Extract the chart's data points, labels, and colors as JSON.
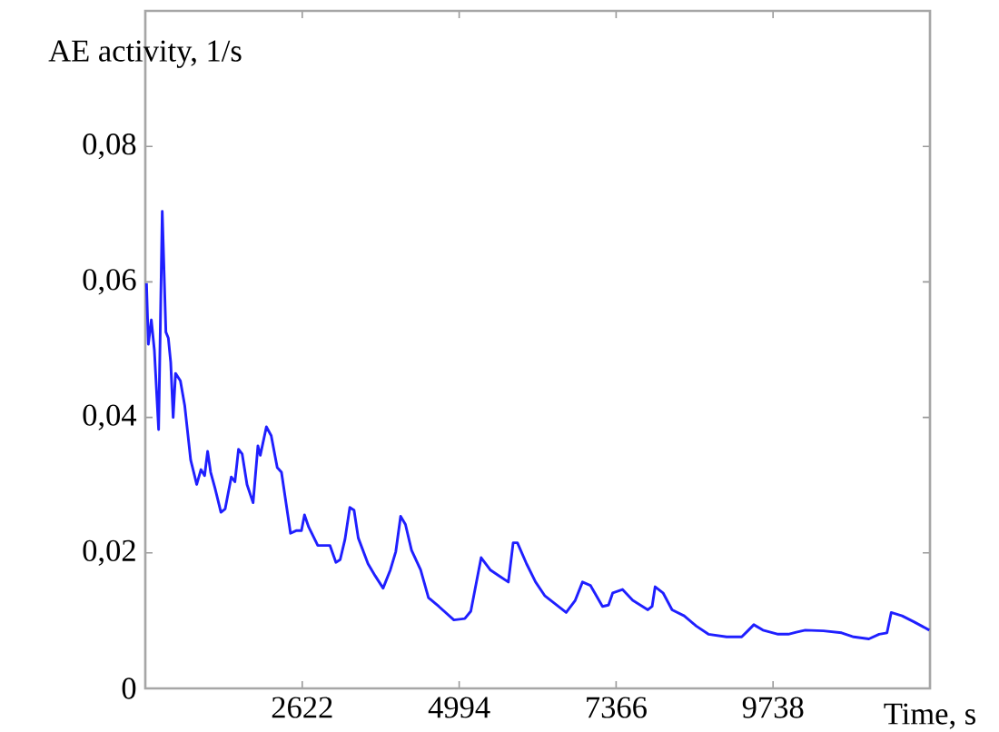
{
  "chart_data": {
    "type": "line",
    "xlabel": "Time, s",
    "ylabel": "AE activity, 1/s",
    "xlim": [
      250,
      12110
    ],
    "ylim": [
      0,
      0.1
    ],
    "xticks": [
      2622,
      4994,
      7366,
      9738
    ],
    "yticks": [
      0,
      {
        "value": 0.02,
        "label": "0,02"
      },
      {
        "value": 0.04,
        "label": "0,04"
      },
      {
        "value": 0.06,
        "label": "0,06"
      },
      {
        "value": 0.08,
        "label": "0,08"
      }
    ],
    "line_style": "solid",
    "series": [
      {
        "color": "#1f1fff",
        "x": [
          268,
          296,
          341,
          387,
          451,
          506,
          561,
          598,
          634,
          671,
          707,
          780,
          845,
          936,
          1027,
          1091,
          1146,
          1192,
          1238,
          1302,
          1393,
          1457,
          1549,
          1604,
          1659,
          1714,
          1787,
          1879,
          1952,
          1988,
          2080,
          2153,
          2244,
          2308,
          2445,
          2537,
          2610,
          2656,
          2720,
          2857,
          3040,
          3131,
          3195,
          3268,
          3341,
          3405,
          3469,
          3616,
          3725,
          3844,
          3954,
          4036,
          4109,
          4182,
          4274,
          4411,
          4530,
          4686,
          4914,
          5079,
          5170,
          5326,
          5463,
          5600,
          5737,
          5810,
          5874,
          6012,
          6149,
          6286,
          6611,
          6748,
          6858,
          6977,
          7160,
          7251,
          7315,
          7462,
          7617,
          7846,
          7910,
          7956,
          8075,
          8212,
          8395,
          8578,
          8761,
          9036,
          9264,
          9356,
          9447,
          9585,
          9814,
          9969,
          10088,
          10225,
          10500,
          10774,
          10957,
          11186,
          11341,
          11460,
          11524,
          11689,
          11872,
          12100
        ],
        "values": [
          0.0598,
          0.0508,
          0.0544,
          0.0499,
          0.0382,
          0.0704,
          0.0526,
          0.0517,
          0.0481,
          0.04,
          0.0465,
          0.0454,
          0.0418,
          0.0337,
          0.0301,
          0.0323,
          0.0314,
          0.035,
          0.0319,
          0.0296,
          0.026,
          0.0265,
          0.0312,
          0.0305,
          0.0353,
          0.0346,
          0.0301,
          0.0274,
          0.0358,
          0.0344,
          0.0386,
          0.0373,
          0.0326,
          0.0319,
          0.0229,
          0.0233,
          0.0233,
          0.0256,
          0.0238,
          0.0211,
          0.0211,
          0.0186,
          0.019,
          0.022,
          0.0267,
          0.0263,
          0.0222,
          0.0184,
          0.0166,
          0.0148,
          0.0175,
          0.0202,
          0.0254,
          0.0242,
          0.0204,
          0.0175,
          0.0134,
          0.0121,
          0.0101,
          0.0103,
          0.0114,
          0.0193,
          0.0175,
          0.0166,
          0.0157,
          0.0215,
          0.0215,
          0.0184,
          0.0157,
          0.0137,
          0.0112,
          0.013,
          0.0157,
          0.0152,
          0.0121,
          0.0123,
          0.0141,
          0.0146,
          0.013,
          0.0116,
          0.0121,
          0.015,
          0.0141,
          0.0116,
          0.0107,
          0.0092,
          0.008,
          0.0076,
          0.0076,
          0.0085,
          0.0094,
          0.0086,
          0.008,
          0.008,
          0.0083,
          0.0086,
          0.0085,
          0.0082,
          0.0076,
          0.0073,
          0.008,
          0.0082,
          0.0112,
          0.0107,
          0.0098,
          0.0086
        ]
      }
    ]
  }
}
